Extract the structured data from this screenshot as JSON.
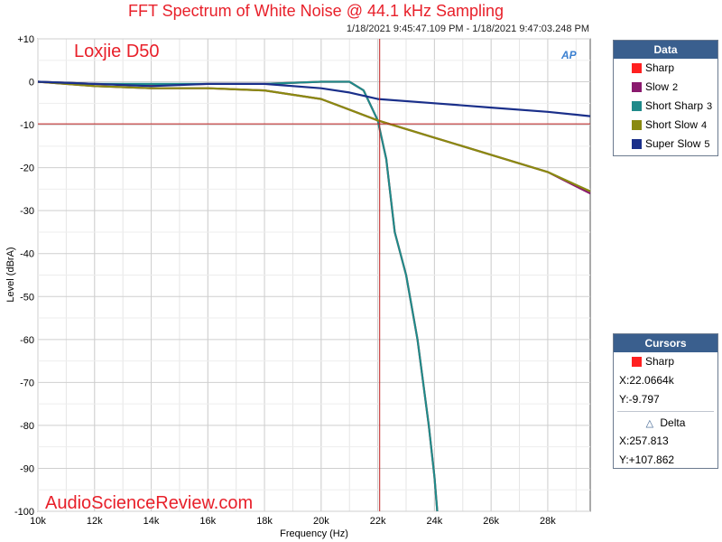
{
  "title": "FFT Spectrum of White Noise @ 44.1 kHz Sampling",
  "timestamp": "1/18/2021 9:45:47.109 PM - 1/18/2021 9:47:03.248 PM",
  "device_label": "Loxjie D50",
  "watermark": "AudioScienceReview.com",
  "logo_text": "AP",
  "legend": {
    "header": "Data",
    "items": [
      {
        "label": "Sharp",
        "num": "",
        "color": "#ff2020"
      },
      {
        "label": "Slow",
        "num": "2",
        "color": "#8a1a6e"
      },
      {
        "label": "Short Sharp",
        "num": "3",
        "color": "#1f8a8a"
      },
      {
        "label": "Short Slow",
        "num": "4",
        "color": "#8a8a10"
      },
      {
        "label": "Super Slow",
        "num": "5",
        "color": "#1a2f8a"
      }
    ]
  },
  "cursors": {
    "header": "Cursors",
    "trace_label": "Sharp",
    "trace_color": "#ff2020",
    "x_text": "X:22.0664k",
    "y_text": "Y:-9.797",
    "delta_label": "Delta",
    "delta_x_text": "X:257.813",
    "delta_y_text": "Y:+107.862"
  },
  "chart_data": {
    "type": "line",
    "xlabel": "Frequency (Hz)",
    "ylabel": "Level (dBrA)",
    "xlim": [
      10000,
      29500
    ],
    "ylim": [
      -100,
      10
    ],
    "x_ticks": [
      10000,
      12000,
      14000,
      16000,
      18000,
      20000,
      22000,
      24000,
      26000,
      28000
    ],
    "x_tick_labels": [
      "10k",
      "12k",
      "14k",
      "16k",
      "18k",
      "20k",
      "22k",
      "24k",
      "26k",
      "28k"
    ],
    "y_ticks": [
      10,
      0,
      -10,
      -20,
      -30,
      -40,
      -50,
      -60,
      -70,
      -80,
      -90,
      -100
    ],
    "y_tick_labels": [
      "+10",
      "0",
      "-10",
      "-20",
      "-30",
      "-40",
      "-50",
      "-60",
      "-70",
      "-80",
      "-90",
      "-100"
    ],
    "grid": true,
    "cursor": {
      "x": 22066.4,
      "y": -9.797
    },
    "series": [
      {
        "name": "Sharp",
        "color": "#ff2020",
        "points": [
          [
            10000,
            0
          ],
          [
            12000,
            -0.5
          ],
          [
            14000,
            -0.8
          ],
          [
            16000,
            -0.5
          ],
          [
            18000,
            -0.5
          ],
          [
            20000,
            0
          ],
          [
            21000,
            0
          ],
          [
            21500,
            -2
          ],
          [
            22000,
            -9
          ],
          [
            22300,
            -18
          ],
          [
            22600,
            -35
          ],
          [
            23000,
            -45
          ],
          [
            23400,
            -60
          ],
          [
            23800,
            -80
          ],
          [
            24000,
            -92
          ],
          [
            24100,
            -100
          ]
        ]
      },
      {
        "name": "Slow",
        "color": "#8a1a6e",
        "points": [
          [
            10000,
            0
          ],
          [
            12000,
            -1
          ],
          [
            14000,
            -1.5
          ],
          [
            16000,
            -1.5
          ],
          [
            18000,
            -2
          ],
          [
            20000,
            -4
          ],
          [
            22000,
            -9
          ],
          [
            24000,
            -13
          ],
          [
            26000,
            -17
          ],
          [
            28000,
            -21
          ],
          [
            29500,
            -26
          ]
        ]
      },
      {
        "name": "Short Sharp",
        "color": "#1f8a8a",
        "points": [
          [
            10000,
            0
          ],
          [
            12000,
            -0.5
          ],
          [
            14000,
            -0.5
          ],
          [
            16000,
            -0.5
          ],
          [
            18000,
            -0.5
          ],
          [
            20000,
            0
          ],
          [
            21000,
            0
          ],
          [
            21500,
            -2
          ],
          [
            22000,
            -9
          ],
          [
            22300,
            -18
          ],
          [
            22600,
            -35
          ],
          [
            23000,
            -45
          ],
          [
            23400,
            -60
          ],
          [
            23800,
            -80
          ],
          [
            24000,
            -92
          ],
          [
            24100,
            -100
          ]
        ]
      },
      {
        "name": "Short Slow",
        "color": "#8a8a10",
        "points": [
          [
            10000,
            0
          ],
          [
            12000,
            -1
          ],
          [
            14000,
            -1.5
          ],
          [
            16000,
            -1.5
          ],
          [
            18000,
            -2
          ],
          [
            20000,
            -4
          ],
          [
            22000,
            -9
          ],
          [
            24000,
            -13
          ],
          [
            26000,
            -17
          ],
          [
            28000,
            -21
          ],
          [
            29500,
            -25.5
          ]
        ]
      },
      {
        "name": "Super Slow",
        "color": "#1a2f8a",
        "points": [
          [
            10000,
            0
          ],
          [
            12000,
            -0.5
          ],
          [
            14000,
            -1
          ],
          [
            16000,
            -0.5
          ],
          [
            18000,
            -0.5
          ],
          [
            20000,
            -1.5
          ],
          [
            21000,
            -2.5
          ],
          [
            22000,
            -4
          ],
          [
            24000,
            -5
          ],
          [
            26000,
            -6
          ],
          [
            28000,
            -7
          ],
          [
            29500,
            -8
          ]
        ]
      }
    ]
  }
}
